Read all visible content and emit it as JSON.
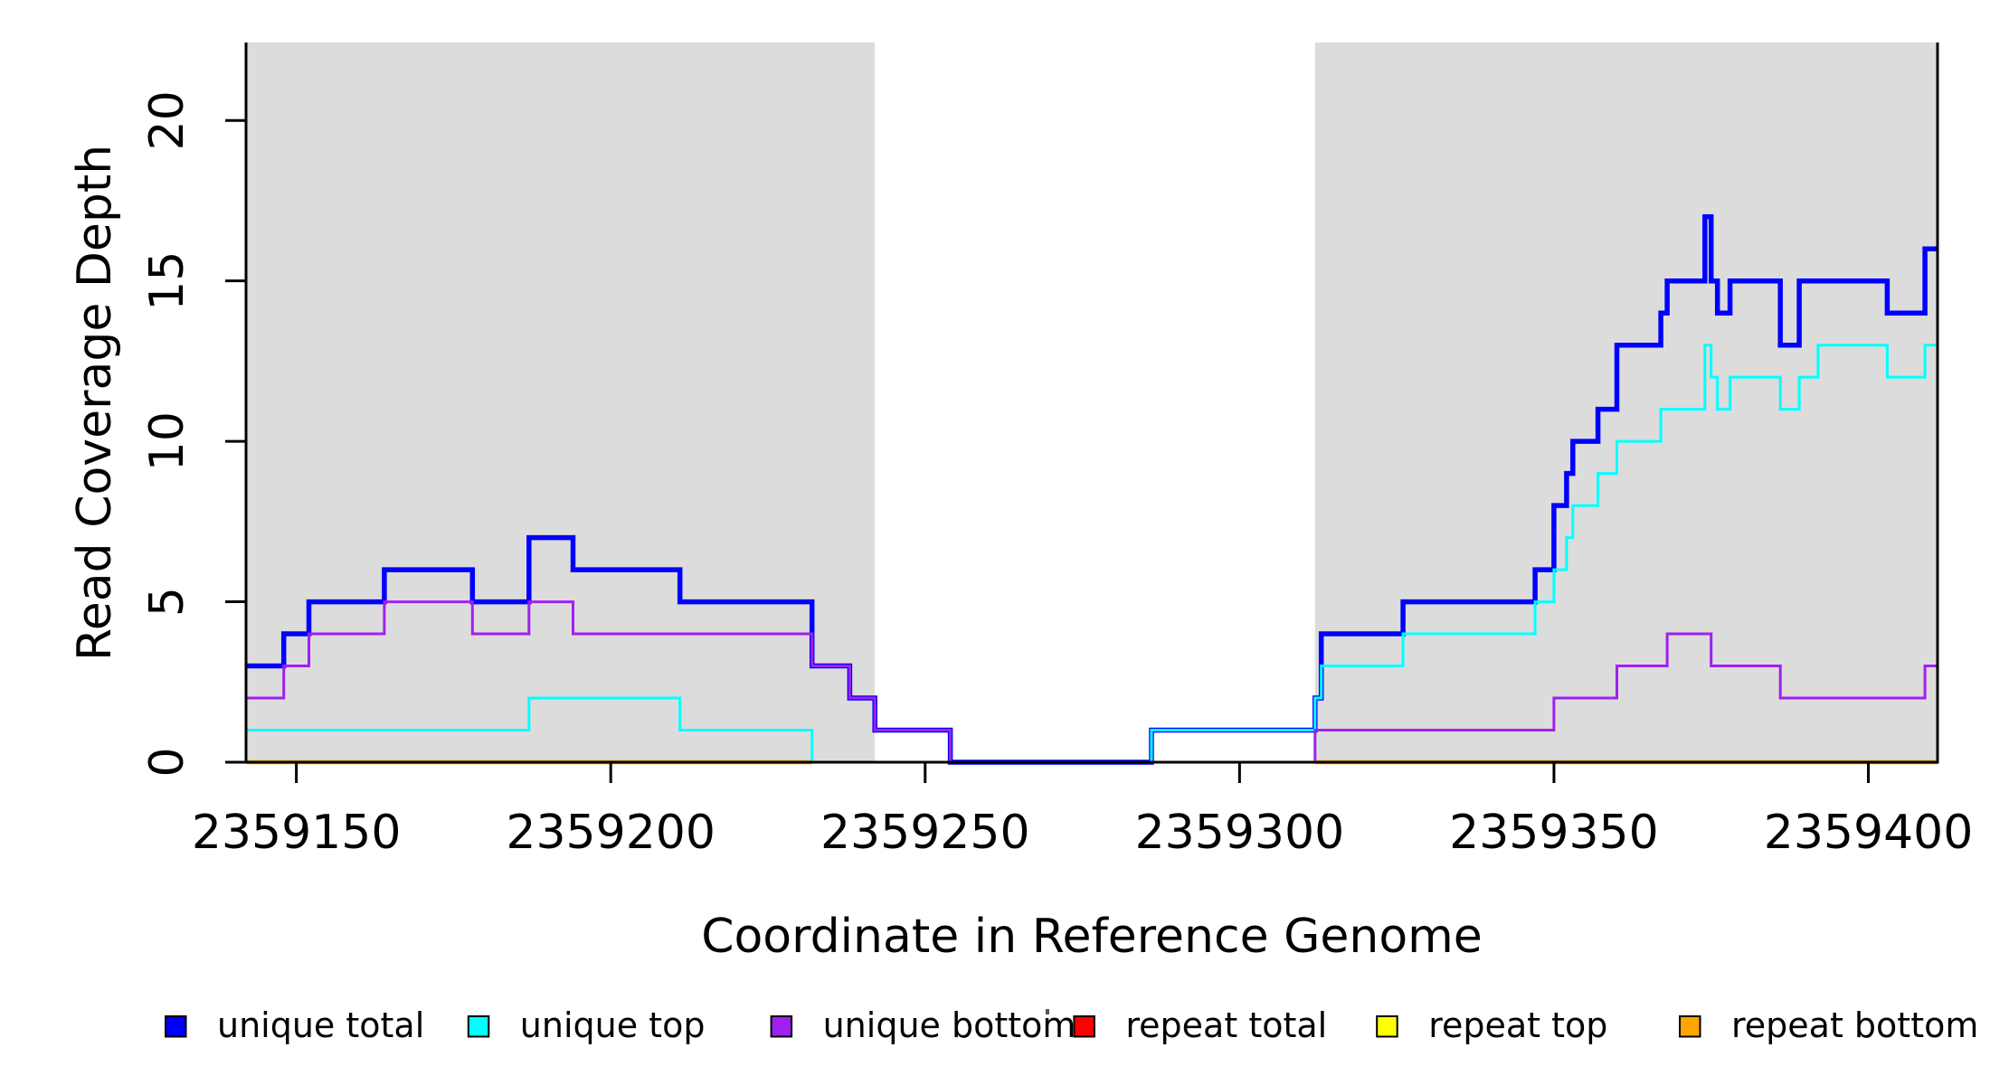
{
  "chart_data": {
    "type": "line",
    "subtype": "step-coverage",
    "title": "",
    "xlabel": "Coordinate in Reference Genome",
    "ylabel": "Read Coverage Depth",
    "xlim": [
      2359142,
      2359411
    ],
    "ylim": [
      0,
      22.43
    ],
    "x_ticks": [
      2359150,
      2359200,
      2359250,
      2359300,
      2359350,
      2359400
    ],
    "y_ticks": [
      0,
      5,
      10,
      15,
      20
    ],
    "grid": false,
    "background_color": "#ffffff",
    "shaded_region_color": "#dcdcdc",
    "shaded_regions": [
      [
        2359142,
        2359242
      ],
      [
        2359312,
        2359411
      ]
    ],
    "series": [
      {
        "name": "unique total",
        "color": "#0000ff",
        "width": 5.5,
        "segments": [
          [
            [
              2359142,
              3
            ],
            [
              2359148,
              4
            ],
            [
              2359152,
              5
            ],
            [
              2359164,
              6
            ],
            [
              2359178,
              5
            ],
            [
              2359187,
              7
            ],
            [
              2359194,
              6
            ],
            [
              2359211,
              5
            ],
            [
              2359232,
              3
            ],
            [
              2359238,
              2
            ],
            [
              2359242,
              1
            ],
            [
              2359254,
              0
            ],
            [
              2359286,
              1
            ],
            [
              2359312,
              2
            ],
            [
              2359313,
              4
            ],
            [
              2359326,
              5
            ],
            [
              2359347,
              6
            ],
            [
              2359350,
              8
            ],
            [
              2359352,
              9
            ],
            [
              2359353,
              10
            ],
            [
              2359357,
              11
            ],
            [
              2359360,
              13
            ],
            [
              2359367,
              14
            ],
            [
              2359368,
              15
            ],
            [
              2359374,
              17
            ],
            [
              2359375,
              15
            ],
            [
              2359376,
              14
            ],
            [
              2359378,
              15
            ],
            [
              2359386,
              13
            ],
            [
              2359389,
              15
            ],
            [
              2359403,
              14
            ],
            [
              2359409,
              16
            ],
            [
              2359411,
              16
            ]
          ]
        ]
      },
      {
        "name": "unique top",
        "color": "#00ffff",
        "width": 3,
        "segments": [
          [
            [
              2359142,
              1
            ],
            [
              2359187,
              2
            ],
            [
              2359211,
              1
            ],
            [
              2359232,
              0
            ],
            [
              2359286,
              1
            ],
            [
              2359312,
              2
            ],
            [
              2359313,
              3
            ],
            [
              2359326,
              4
            ],
            [
              2359347,
              5
            ],
            [
              2359350,
              6
            ],
            [
              2359352,
              7
            ],
            [
              2359353,
              8
            ],
            [
              2359357,
              9
            ],
            [
              2359360,
              10
            ],
            [
              2359367,
              11
            ],
            [
              2359374,
              13
            ],
            [
              2359375,
              12
            ],
            [
              2359376,
              11
            ],
            [
              2359378,
              12
            ],
            [
              2359386,
              11
            ],
            [
              2359389,
              12
            ],
            [
              2359392,
              13
            ],
            [
              2359403,
              12
            ],
            [
              2359409,
              13
            ],
            [
              2359411,
              13
            ]
          ]
        ]
      },
      {
        "name": "unique bottom",
        "color": "#a020f0",
        "width": 3,
        "segments": [
          [
            [
              2359142,
              2
            ],
            [
              2359148,
              3
            ],
            [
              2359152,
              4
            ],
            [
              2359164,
              5
            ],
            [
              2359178,
              4
            ],
            [
              2359187,
              5
            ],
            [
              2359194,
              4
            ],
            [
              2359232,
              3
            ],
            [
              2359238,
              2
            ],
            [
              2359242,
              1
            ],
            [
              2359254,
              0
            ],
            [
              2359312,
              1
            ],
            [
              2359350,
              2
            ],
            [
              2359360,
              3
            ],
            [
              2359368,
              4
            ],
            [
              2359375,
              3
            ],
            [
              2359386,
              2
            ],
            [
              2359409,
              3
            ],
            [
              2359411,
              3
            ]
          ]
        ]
      },
      {
        "name": "repeat total",
        "color": "#ff0000",
        "width": 3,
        "segments": [
          [
            [
              2359142,
              0
            ],
            [
              2359232,
              0
            ]
          ],
          [
            [
              2359286,
              0
            ],
            [
              2359411,
              0
            ]
          ]
        ]
      },
      {
        "name": "repeat top",
        "color": "#ffff00",
        "width": 3,
        "segments": [
          [
            [
              2359142,
              0
            ],
            [
              2359232,
              0
            ]
          ],
          [
            [
              2359312,
              0
            ],
            [
              2359411,
              0
            ]
          ]
        ]
      },
      {
        "name": "repeat bottom",
        "color": "#ffa500",
        "width": 4.5,
        "segments": [
          [
            [
              2359142,
              0
            ],
            [
              2359232,
              0
            ]
          ],
          [
            [
              2359312,
              0
            ],
            [
              2359411,
              0
            ]
          ]
        ]
      }
    ]
  },
  "legend": {
    "items": [
      {
        "label": "unique total",
        "color": "#0000ff"
      },
      {
        "label": "unique top",
        "color": "#00ffff"
      },
      {
        "label": "unique bottom",
        "color": "#a020f0"
      },
      {
        "label": "repeat total",
        "color": "#ff0000"
      },
      {
        "label": "repeat top",
        "color": "#ffff00"
      },
      {
        "label": "repeat bottom",
        "color": "#ffa500"
      }
    ]
  }
}
